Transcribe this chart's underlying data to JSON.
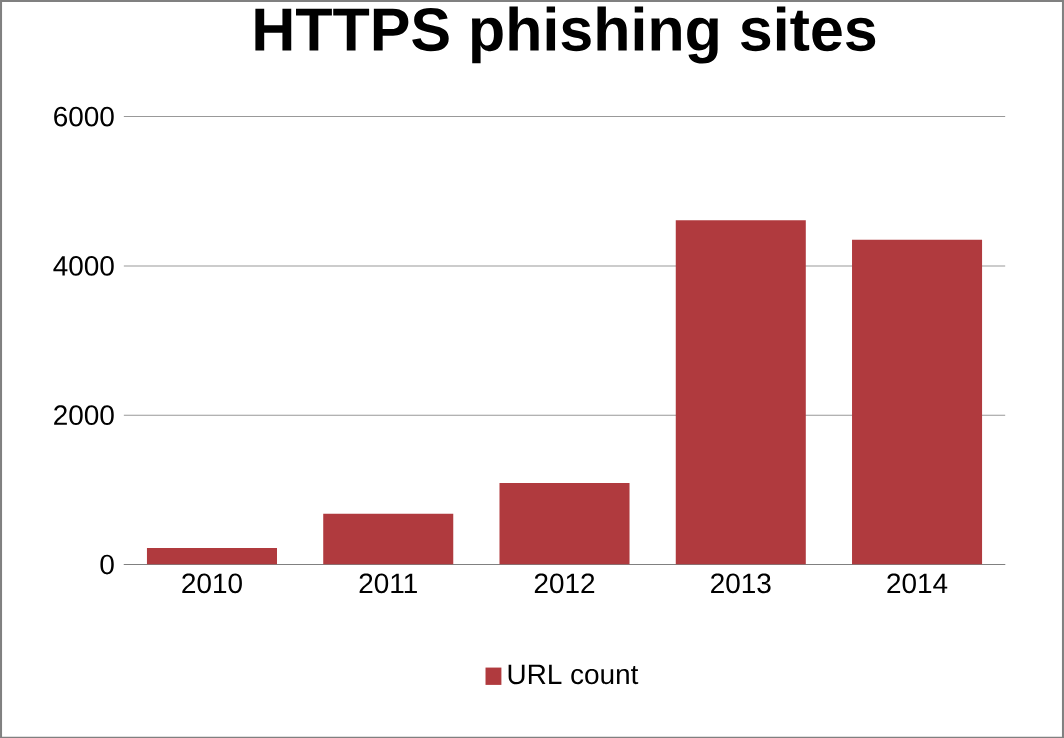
{
  "chart_data": {
    "type": "bar",
    "title": "HTTPS phishing sites",
    "categories": [
      "2010",
      "2011",
      "2012",
      "2013",
      "2014"
    ],
    "series": [
      {
        "name": "URL count",
        "color": "#b03a3e",
        "values": [
          220,
          680,
          1090,
          4610,
          4350
        ]
      }
    ],
    "ylim": [
      0,
      6000
    ],
    "yticks": [
      0,
      2000,
      4000,
      6000
    ],
    "grid": "y",
    "legend": "bottom"
  }
}
